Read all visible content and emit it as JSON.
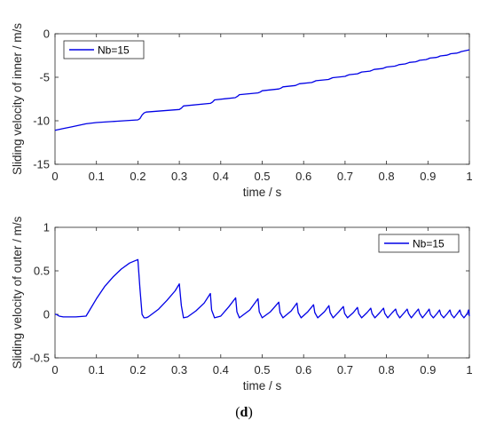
{
  "caption": {
    "open": "(",
    "letter": "d",
    "close": ")"
  },
  "line_color": "#0000e6",
  "chart_data": [
    {
      "type": "line",
      "xlabel": "time / s",
      "ylabel": "Sliding velocity of inner / m/s",
      "xlim": [
        0,
        1
      ],
      "ylim": [
        -15,
        0
      ],
      "xticks": [
        "0",
        "0.1",
        "0.2",
        "0.3",
        "0.4",
        "0.5",
        "0.6",
        "0.7",
        "0.8",
        "0.9",
        "1"
      ],
      "yticks": [
        "-15",
        "-10",
        "-5",
        "0"
      ],
      "legend_position": "top-left",
      "series": [
        {
          "name": "Nb=15",
          "x": [
            0,
            0.02,
            0.04,
            0.06,
            0.075,
            0.1,
            0.15,
            0.2,
            0.205,
            0.21,
            0.215,
            0.22,
            0.3,
            0.305,
            0.31,
            0.375,
            0.38,
            0.385,
            0.435,
            0.44,
            0.445,
            0.49,
            0.495,
            0.5,
            0.54,
            0.545,
            0.55,
            0.58,
            0.585,
            0.59,
            0.62,
            0.625,
            0.63,
            0.66,
            0.665,
            0.67,
            0.7,
            0.705,
            0.71,
            0.73,
            0.735,
            0.74,
            0.76,
            0.765,
            0.77,
            0.79,
            0.795,
            0.8,
            0.82,
            0.825,
            0.83,
            0.845,
            0.85,
            0.855,
            0.87,
            0.875,
            0.88,
            0.895,
            0.9,
            0.905,
            0.92,
            0.925,
            0.93,
            0.945,
            0.95,
            0.955,
            0.97,
            0.975,
            0.98,
            1.0
          ],
          "y": [
            -11.1,
            -10.9,
            -10.7,
            -10.5,
            -10.35,
            -10.2,
            -10.05,
            -9.9,
            -9.75,
            -9.35,
            -9.1,
            -9.0,
            -8.7,
            -8.55,
            -8.3,
            -8.0,
            -7.85,
            -7.6,
            -7.35,
            -7.2,
            -7.0,
            -6.8,
            -6.7,
            -6.55,
            -6.35,
            -6.25,
            -6.1,
            -5.95,
            -5.85,
            -5.75,
            -5.6,
            -5.5,
            -5.4,
            -5.25,
            -5.15,
            -5.05,
            -4.9,
            -4.8,
            -4.7,
            -4.6,
            -4.5,
            -4.4,
            -4.3,
            -4.2,
            -4.1,
            -4.0,
            -3.92,
            -3.83,
            -3.72,
            -3.65,
            -3.55,
            -3.47,
            -3.4,
            -3.3,
            -3.22,
            -3.15,
            -3.05,
            -2.97,
            -2.9,
            -2.8,
            -2.72,
            -2.65,
            -2.55,
            -2.47,
            -2.4,
            -2.3,
            -2.22,
            -2.15,
            -2.05,
            -1.85
          ]
        }
      ]
    },
    {
      "type": "line",
      "xlabel": "time / s",
      "ylabel": "Sliding velocity of outer / m/s",
      "xlim": [
        0,
        1
      ],
      "ylim": [
        -0.5,
        1
      ],
      "xticks": [
        "0",
        "0.1",
        "0.2",
        "0.3",
        "0.4",
        "0.5",
        "0.6",
        "0.7",
        "0.8",
        "0.9",
        "1"
      ],
      "yticks": [
        "-0.5",
        "0",
        "0.5",
        "1"
      ],
      "legend_position": "top-right",
      "series": [
        {
          "name": "Nb=15",
          "x": [
            0,
            0.003,
            0.01,
            0.02,
            0.05,
            0.075,
            0.08,
            0.1,
            0.12,
            0.14,
            0.16,
            0.18,
            0.2,
            0.205,
            0.21,
            0.215,
            0.22,
            0.225,
            0.25,
            0.27,
            0.29,
            0.3,
            0.305,
            0.31,
            0.32,
            0.34,
            0.36,
            0.375,
            0.378,
            0.385,
            0.4,
            0.42,
            0.436,
            0.439,
            0.445,
            0.47,
            0.49,
            0.493,
            0.5,
            0.52,
            0.54,
            0.543,
            0.55,
            0.57,
            0.584,
            0.587,
            0.594,
            0.61,
            0.624,
            0.627,
            0.634,
            0.65,
            0.661,
            0.664,
            0.671,
            0.685,
            0.696,
            0.699,
            0.706,
            0.72,
            0.73,
            0.733,
            0.74,
            0.753,
            0.762,
            0.765,
            0.772,
            0.784,
            0.793,
            0.796,
            0.803,
            0.814,
            0.822,
            0.825,
            0.832,
            0.843,
            0.85,
            0.853,
            0.86,
            0.87,
            0.877,
            0.88,
            0.887,
            0.897,
            0.903,
            0.906,
            0.913,
            0.922,
            0.928,
            0.931,
            0.938,
            0.947,
            0.953,
            0.956,
            0.963,
            0.971,
            0.977,
            0.98,
            0.987,
            0.995,
            0.998,
            1.0
          ],
          "y": [
            0.0,
            0.0,
            -0.02,
            -0.03,
            -0.03,
            -0.02,
            0.02,
            0.18,
            0.32,
            0.43,
            0.52,
            0.59,
            0.63,
            0.3,
            0.0,
            -0.04,
            -0.04,
            -0.03,
            0.06,
            0.16,
            0.27,
            0.35,
            0.1,
            -0.04,
            -0.03,
            0.04,
            0.13,
            0.24,
            0.05,
            -0.04,
            -0.02,
            0.09,
            0.19,
            0.03,
            -0.04,
            0.05,
            0.18,
            0.03,
            -0.04,
            0.03,
            0.14,
            0.02,
            -0.04,
            0.04,
            0.13,
            0.02,
            -0.04,
            0.03,
            0.11,
            0.02,
            -0.04,
            0.03,
            0.1,
            0.02,
            -0.04,
            0.03,
            0.09,
            0.01,
            -0.04,
            0.02,
            0.08,
            0.01,
            -0.04,
            0.02,
            0.07,
            0.01,
            -0.04,
            0.02,
            0.07,
            0.01,
            -0.04,
            0.02,
            0.06,
            0.01,
            -0.04,
            0.02,
            0.06,
            0.01,
            -0.04,
            0.02,
            0.06,
            0.01,
            -0.04,
            0.02,
            0.06,
            0.0,
            -0.04,
            0.01,
            0.05,
            0.0,
            -0.04,
            0.01,
            0.05,
            0.0,
            -0.04,
            0.01,
            0.05,
            0.0,
            -0.04,
            0.01,
            0.05,
            -0.02
          ]
        }
      ]
    }
  ]
}
